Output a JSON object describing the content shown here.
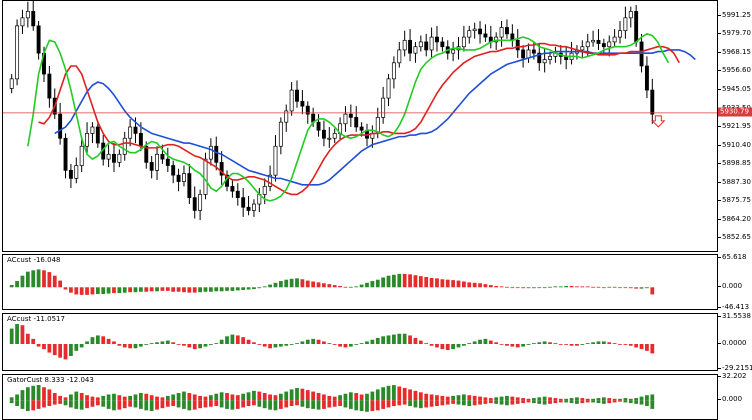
{
  "price_pane": {
    "ylim": [
      5846,
      5998
    ],
    "axis_ticks": [
      "5991.25",
      "5979.70",
      "5968.15",
      "5956.60",
      "5945.05",
      "5933.50",
      "5921.95",
      "5910.40",
      "5898.85",
      "5887.30",
      "5875.75",
      "5864.20",
      "5852.65"
    ],
    "current_price": "5930.79",
    "current_value": 5930.79
  },
  "ac1_pane": {
    "title": "ACcust -16.048",
    "ylim": [
      -46.413,
      65.618
    ],
    "axis_ticks": [
      "65.618",
      "0.000",
      "-46.413"
    ]
  },
  "ac2_pane": {
    "title": "ACcust -11.0517",
    "ylim": [
      -29.2151,
      31.5538
    ],
    "axis_ticks": [
      "31.5538",
      "0.0000",
      "-29.2151"
    ]
  },
  "gator_pane": {
    "title": "GatorCust 8.333 -12.043",
    "ylim": [
      -26.0,
      32.202
    ],
    "axis_ticks": [
      "32.202",
      "0.000"
    ]
  },
  "colors": {
    "up_bar": "#2a8a2a",
    "down_bar": "#e52b2b",
    "lips": "#22cc22",
    "teeth": "#e02020",
    "jaw": "#1f4fd6",
    "price_line": "#d63c3c",
    "candle": "#000000"
  },
  "chart_data": [
    {
      "type": "candlestick",
      "closes": [
        5952,
        5985,
        5990,
        5994,
        5985,
        5968,
        5955,
        5940,
        5930,
        5915,
        5895,
        5890,
        5898,
        5910,
        5918,
        5922,
        5912,
        5902,
        5905,
        5900,
        5905,
        5915,
        5922,
        5918,
        5910,
        5900,
        5895,
        5905,
        5902,
        5898,
        5892,
        5888,
        5893,
        5878,
        5870,
        5880,
        5902,
        5910,
        5900,
        5892,
        5885,
        5882,
        5878,
        5872,
        5870,
        5874,
        5880,
        5885,
        5892,
        5910,
        5925,
        5932,
        5945,
        5938,
        5935,
        5930,
        5925,
        5920,
        5915,
        5915,
        5918,
        5924,
        5930,
        5928,
        5922,
        5920,
        5915,
        5918,
        5928,
        5940,
        5952,
        5962,
        5970,
        5976,
        5968,
        5972,
        5975,
        5970,
        5978,
        5975,
        5972,
        5968,
        5970,
        5972,
        5978,
        5982,
        5983,
        5980,
        5978,
        5975,
        5978,
        5984,
        5980,
        5976,
        5970,
        5965,
        5970,
        5968,
        5962,
        5964,
        5966,
        5968,
        5966,
        5964,
        5968,
        5970,
        5972,
        5975,
        5976,
        5974,
        5972,
        5975,
        5978,
        5982,
        5990,
        5994,
        5975,
        5960,
        5945,
        5930
      ],
      "lips": [
        5910,
        5930,
        5955,
        5968,
        5976,
        5975,
        5968,
        5958,
        5945,
        5930,
        5915,
        5905,
        5902,
        5904,
        5908,
        5912,
        5913,
        5910,
        5908,
        5906,
        5906,
        5908,
        5911,
        5913,
        5912,
        5908,
        5904,
        5902,
        5901,
        5900,
        5898,
        5895,
        5893,
        5889,
        5884,
        5882,
        5885,
        5890,
        5893,
        5893,
        5891,
        5888,
        5884,
        5880,
        5877,
        5876,
        5877,
        5879,
        5883,
        5890,
        5900,
        5910,
        5920,
        5925,
        5927,
        5927,
        5925,
        5922,
        5918,
        5916,
        5915,
        5916,
        5918,
        5920,
        5920,
        5919,
        5917,
        5916,
        5918,
        5923,
        5930,
        5940,
        5950,
        5958,
        5962,
        5965,
        5967,
        5968,
        5970,
        5971,
        5971,
        5970,
        5970,
        5970,
        5971,
        5973,
        5975,
        5976,
        5976,
        5976,
        5976,
        5977,
        5978,
        5977,
        5975,
        5972,
        5971,
        5970,
        5968,
        5967,
        5966,
        5966,
        5966,
        5965,
        5966,
        5967,
        5968,
        5970,
        5971,
        5972,
        5972,
        5972,
        5973,
        5975,
        5978,
        5980,
        5979,
        5975,
        5968,
        5962
      ],
      "teeth": [
        5925,
        5924,
        5928,
        5935,
        5945,
        5955,
        5960,
        5960,
        5955,
        5945,
        5935,
        5925,
        5918,
        5913,
        5911,
        5911,
        5912,
        5912,
        5911,
        5910,
        5909,
        5909,
        5909,
        5910,
        5911,
        5911,
        5910,
        5908,
        5906,
        5904,
        5903,
        5901,
        5899,
        5897,
        5894,
        5891,
        5889,
        5889,
        5890,
        5891,
        5891,
        5890,
        5889,
        5887,
        5885,
        5883,
        5881,
        5880,
        5880,
        5882,
        5885,
        5890,
        5896,
        5902,
        5907,
        5911,
        5914,
        5916,
        5917,
        5917,
        5917,
        5917,
        5918,
        5918,
        5919,
        5919,
        5918,
        5918,
        5918,
        5919,
        5921,
        5925,
        5931,
        5937,
        5943,
        5948,
        5952,
        5956,
        5959,
        5962,
        5964,
        5966,
        5967,
        5968,
        5969,
        5969,
        5970,
        5971,
        5971,
        5972,
        5972,
        5973,
        5973,
        5974,
        5974,
        5973,
        5973,
        5972,
        5972,
        5971,
        5970,
        5969,
        5968,
        5968,
        5967,
        5967,
        5967,
        5967,
        5968,
        5968,
        5969,
        5969,
        5969,
        5970,
        5971,
        5972,
        5972,
        5971,
        5968,
        5962
      ],
      "jaw": [
        5918,
        5920,
        5922,
        5926,
        5932,
        5938,
        5944,
        5948,
        5950,
        5949,
        5946,
        5942,
        5937,
        5932,
        5928,
        5925,
        5922,
        5920,
        5918,
        5917,
        5916,
        5915,
        5914,
        5913,
        5912,
        5912,
        5911,
        5910,
        5909,
        5908,
        5906,
        5905,
        5903,
        5901,
        5899,
        5897,
        5895,
        5894,
        5893,
        5892,
        5891,
        5890,
        5890,
        5889,
        5888,
        5887,
        5886,
        5886,
        5886,
        5886,
        5887,
        5889,
        5892,
        5895,
        5898,
        5901,
        5904,
        5907,
        5909,
        5911,
        5912,
        5913,
        5914,
        5915,
        5916,
        5916,
        5917,
        5917,
        5918,
        5918,
        5919,
        5921,
        5924,
        5927,
        5931,
        5935,
        5939,
        5943,
        5946,
        5949,
        5952,
        5955,
        5957,
        5959,
        5961,
        5962,
        5963,
        5964,
        5965,
        5966,
        5967,
        5968,
        5968,
        5969,
        5969,
        5969,
        5969,
        5969,
        5969,
        5969,
        5968,
        5968,
        5968,
        5968,
        5968,
        5968,
        5968,
        5968,
        5968,
        5968,
        5968,
        5968,
        5969,
        5969,
        5970,
        5970,
        5970,
        5969,
        5967,
        5964
      ]
    },
    {
      "type": "bar",
      "name": "ACcust",
      "values": [
        5,
        14,
        26,
        35,
        38,
        40,
        38,
        34,
        26,
        15,
        -5,
        -12,
        -16,
        -17,
        -17,
        -16,
        -15,
        -15,
        -14,
        -13,
        -13,
        -12,
        -11,
        -11,
        -10,
        -10,
        -9,
        -9,
        -8,
        -8,
        -10,
        -10,
        -11,
        -12,
        -12,
        -11,
        -10,
        -10,
        -9,
        -9,
        -8,
        -8,
        -7,
        -6,
        -5,
        -4,
        -2,
        2,
        6,
        10,
        14,
        17,
        19,
        20,
        18,
        15,
        13,
        11,
        9,
        7,
        5,
        3,
        1,
        1,
        2,
        6,
        10,
        14,
        17,
        22,
        26,
        28,
        30,
        30,
        29,
        27,
        25,
        23,
        21,
        20,
        18,
        17,
        16,
        15,
        13,
        11,
        10,
        9,
        7,
        5,
        3,
        2,
        1,
        0,
        -1,
        -2,
        -2,
        -2,
        -1,
        0,
        1,
        2,
        2,
        3,
        3,
        2,
        2,
        2,
        1,
        1,
        0,
        1,
        1,
        0,
        -1,
        -2,
        -3,
        -3,
        -2,
        -16
      ],
      "colors": [
        "up",
        "up",
        "up",
        "up",
        "up",
        "up",
        "down",
        "down",
        "down",
        "down",
        "down",
        "down",
        "down",
        "down",
        "down",
        "down",
        "up",
        "up",
        "up",
        "down",
        "up",
        "up",
        "down",
        "up",
        "up",
        "down",
        "down",
        "up",
        "down",
        "down",
        "down",
        "down",
        "down",
        "down",
        "down",
        "up",
        "up",
        "up",
        "up",
        "up",
        "up",
        "up",
        "up",
        "up",
        "up",
        "up",
        "up",
        "up",
        "up",
        "up",
        "up",
        "up",
        "up",
        "up",
        "down",
        "down",
        "down",
        "down",
        "down",
        "down",
        "down",
        "down",
        "down",
        "up",
        "up",
        "up",
        "up",
        "up",
        "up",
        "up",
        "up",
        "up",
        "up",
        "down",
        "down",
        "down",
        "down",
        "down",
        "down",
        "down",
        "down",
        "down",
        "down",
        "down",
        "down",
        "down",
        "down",
        "down",
        "down",
        "down",
        "down",
        "down",
        "down",
        "down",
        "down",
        "down",
        "down",
        "up",
        "up",
        "up",
        "up",
        "up",
        "up",
        "up",
        "down",
        "down",
        "down",
        "down",
        "down",
        "down",
        "down",
        "up",
        "down",
        "down",
        "down",
        "down",
        "down",
        "up",
        "up",
        "down"
      ]
    },
    {
      "type": "bar",
      "name": "ACcust",
      "values": [
        18,
        25,
        22,
        12,
        6,
        -3,
        -6,
        -10,
        -13,
        -16,
        -18,
        -14,
        -8,
        -4,
        3,
        8,
        10,
        9,
        6,
        3,
        -2,
        -4,
        -5,
        -5,
        -3,
        -1,
        1,
        2,
        3,
        4,
        2,
        0,
        -2,
        -4,
        -6,
        -5,
        -3,
        -1,
        1,
        5,
        9,
        11,
        10,
        8,
        5,
        2,
        -1,
        -3,
        -5,
        -4,
        -3,
        -2,
        -1,
        1,
        3,
        5,
        6,
        5,
        3,
        1,
        -1,
        -3,
        -4,
        -3,
        -1,
        1,
        3,
        5,
        7,
        9,
        10,
        11,
        12,
        12,
        10,
        7,
        4,
        1,
        -2,
        -4,
        -6,
        -7,
        -6,
        -4,
        -2,
        1,
        3,
        5,
        6,
        4,
        2,
        0,
        -2,
        -3,
        -4,
        -3,
        -1,
        1,
        2,
        3,
        2,
        1,
        0,
        -1,
        -2,
        -2,
        -1,
        1,
        2,
        3,
        3,
        2,
        1,
        0,
        -1,
        -2,
        -4,
        -6,
        -8,
        -11
      ],
      "colors": [
        "up",
        "up",
        "down",
        "down",
        "down",
        "down",
        "down",
        "down",
        "down",
        "down",
        "down",
        "up",
        "up",
        "up",
        "up",
        "up",
        "up",
        "down",
        "down",
        "down",
        "down",
        "down",
        "down",
        "up",
        "up",
        "up",
        "up",
        "up",
        "up",
        "up",
        "down",
        "down",
        "down",
        "down",
        "down",
        "up",
        "up",
        "up",
        "up",
        "up",
        "up",
        "up",
        "down",
        "down",
        "down",
        "down",
        "down",
        "down",
        "down",
        "up",
        "up",
        "up",
        "up",
        "up",
        "up",
        "up",
        "up",
        "down",
        "down",
        "down",
        "down",
        "down",
        "down",
        "up",
        "up",
        "up",
        "up",
        "up",
        "up",
        "up",
        "up",
        "up",
        "up",
        "up",
        "down",
        "down",
        "down",
        "down",
        "down",
        "down",
        "down",
        "down",
        "up",
        "up",
        "up",
        "up",
        "up",
        "up",
        "up",
        "down",
        "down",
        "down",
        "down",
        "down",
        "down",
        "up",
        "up",
        "up",
        "up",
        "up",
        "down",
        "down",
        "down",
        "down",
        "down",
        "down",
        "up",
        "up",
        "up",
        "up",
        "up",
        "down",
        "down",
        "down",
        "down",
        "down",
        "down",
        "down",
        "down",
        "down"
      ]
    },
    {
      "type": "bar",
      "name": "GatorCust",
      "upper": [
        4,
        8,
        14,
        18,
        20,
        22,
        18,
        15,
        10,
        6,
        4,
        8,
        12,
        10,
        7,
        5,
        4,
        6,
        8,
        9,
        7,
        5,
        6,
        8,
        10,
        9,
        7,
        5,
        4,
        6,
        8,
        10,
        12,
        10,
        8,
        6,
        5,
        7,
        9,
        11,
        10,
        8,
        7,
        9,
        11,
        13,
        12,
        10,
        8,
        7,
        9,
        12,
        15,
        17,
        16,
        14,
        12,
        10,
        8,
        6,
        5,
        7,
        9,
        11,
        10,
        8,
        9,
        12,
        15,
        18,
        20,
        21,
        19,
        17,
        15,
        13,
        11,
        9,
        8,
        7,
        6,
        5,
        6,
        7,
        8,
        7,
        6,
        5,
        4,
        3,
        4,
        5,
        6,
        5,
        4,
        3,
        2,
        3,
        4,
        5,
        4,
        3,
        2,
        2,
        3,
        4,
        3,
        2,
        2,
        3,
        4,
        3,
        2,
        2,
        3,
        2,
        3,
        5,
        7,
        8
      ],
      "lower": [
        -4,
        -8,
        -12,
        -15,
        -14,
        -12,
        -10,
        -8,
        -6,
        -5,
        -7,
        -10,
        -12,
        -13,
        -11,
        -9,
        -7,
        -9,
        -12,
        -14,
        -13,
        -11,
        -9,
        -10,
        -12,
        -14,
        -15,
        -13,
        -11,
        -9,
        -8,
        -10,
        -12,
        -14,
        -13,
        -11,
        -10,
        -9,
        -8,
        -10,
        -12,
        -13,
        -12,
        -10,
        -8,
        -7,
        -9,
        -11,
        -13,
        -14,
        -12,
        -10,
        -8,
        -7,
        -9,
        -11,
        -12,
        -13,
        -12,
        -10,
        -9,
        -8,
        -10,
        -12,
        -14,
        -15,
        -16,
        -15,
        -14,
        -12,
        -10,
        -8,
        -7,
        -6,
        -8,
        -10,
        -11,
        -10,
        -9,
        -8,
        -7,
        -6,
        -5,
        -6,
        -7,
        -8,
        -7,
        -6,
        -5,
        -4,
        -5,
        -6,
        -7,
        -6,
        -5,
        -4,
        -3,
        -4,
        -5,
        -6,
        -5,
        -4,
        -3,
        -3,
        -4,
        -5,
        -4,
        -3,
        -3,
        -4,
        -5,
        -4,
        -3,
        -2,
        -3,
        -4,
        -5,
        -6,
        -8,
        -12
      ]
    }
  ]
}
